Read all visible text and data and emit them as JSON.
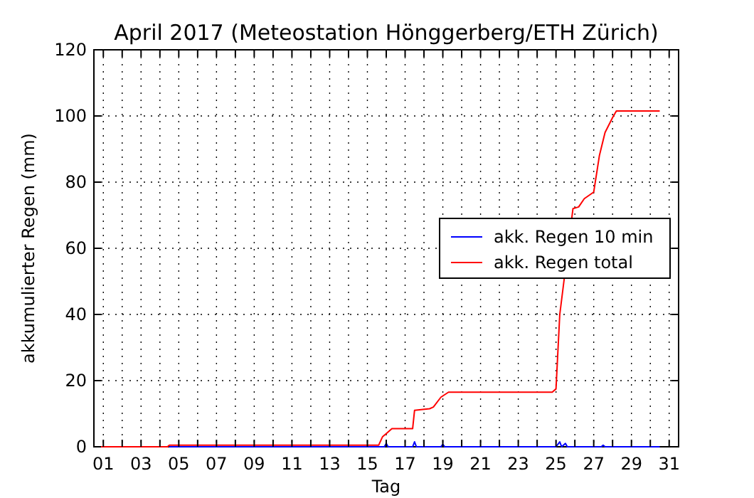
{
  "chart_data": {
    "type": "line",
    "title": "April 2017  (Meteostation Hönggerberg/ETH Zürich)",
    "xlabel": "Tag",
    "ylabel": "akkumulierter Regen (mm)",
    "xlim": [
      0.5,
      31.5
    ],
    "ylim": [
      0,
      120
    ],
    "xticks": [
      {
        "value": 1,
        "label": "01"
      },
      {
        "value": 2,
        "label": null
      },
      {
        "value": 3,
        "label": "03"
      },
      {
        "value": 4,
        "label": null
      },
      {
        "value": 5,
        "label": "05"
      },
      {
        "value": 6,
        "label": null
      },
      {
        "value": 7,
        "label": "07"
      },
      {
        "value": 8,
        "label": null
      },
      {
        "value": 9,
        "label": "09"
      },
      {
        "value": 10,
        "label": null
      },
      {
        "value": 11,
        "label": "11"
      },
      {
        "value": 12,
        "label": null
      },
      {
        "value": 13,
        "label": "13"
      },
      {
        "value": 14,
        "label": null
      },
      {
        "value": 15,
        "label": "15"
      },
      {
        "value": 16,
        "label": null
      },
      {
        "value": 17,
        "label": "17"
      },
      {
        "value": 18,
        "label": null
      },
      {
        "value": 19,
        "label": "19"
      },
      {
        "value": 20,
        "label": null
      },
      {
        "value": 21,
        "label": "21"
      },
      {
        "value": 22,
        "label": null
      },
      {
        "value": 23,
        "label": "23"
      },
      {
        "value": 24,
        "label": null
      },
      {
        "value": 25,
        "label": "25"
      },
      {
        "value": 26,
        "label": null
      },
      {
        "value": 27,
        "label": "27"
      },
      {
        "value": 28,
        "label": null
      },
      {
        "value": 29,
        "label": "29"
      },
      {
        "value": 30,
        "label": null
      },
      {
        "value": 31,
        "label": "31"
      }
    ],
    "yticks": [
      0,
      20,
      40,
      60,
      80,
      100,
      120
    ],
    "grid": true,
    "legend": "right",
    "line_style": "solid",
    "marker": "none",
    "series": [
      {
        "name": "akk. Regen 10 min",
        "color": "#0000ff",
        "x": [
          4.5,
          15.9,
          16.0,
          16.1,
          17.4,
          17.5,
          17.6,
          18.9,
          19.0,
          19.1,
          25.0,
          25.2,
          25.3,
          25.5,
          25.6,
          27.4,
          27.5,
          27.6,
          30.5
        ],
        "values": [
          0,
          0,
          1,
          0,
          0,
          1.5,
          0,
          0,
          0.7,
          0,
          0,
          1.5,
          0,
          1,
          0,
          0,
          0.5,
          0,
          0
        ]
      },
      {
        "name": "akk. Regen total",
        "color": "#ff0000",
        "x": [
          0.6,
          4.4,
          4.5,
          15.6,
          15.8,
          16.0,
          16.3,
          17.4,
          17.5,
          18.3,
          18.5,
          18.9,
          19.3,
          24.8,
          25.0,
          25.2,
          25.5,
          25.9,
          26.2,
          26.5,
          27.0,
          27.3,
          27.6,
          28.0,
          28.2,
          30.5
        ],
        "values": [
          0,
          0,
          0.5,
          0.5,
          3,
          4,
          5.5,
          5.5,
          11,
          11.5,
          12,
          15,
          16.5,
          16.5,
          17.5,
          40,
          null,
          72,
          72.5,
          75,
          77,
          88,
          95,
          99.5,
          101.5,
          101.5
        ]
      }
    ]
  }
}
